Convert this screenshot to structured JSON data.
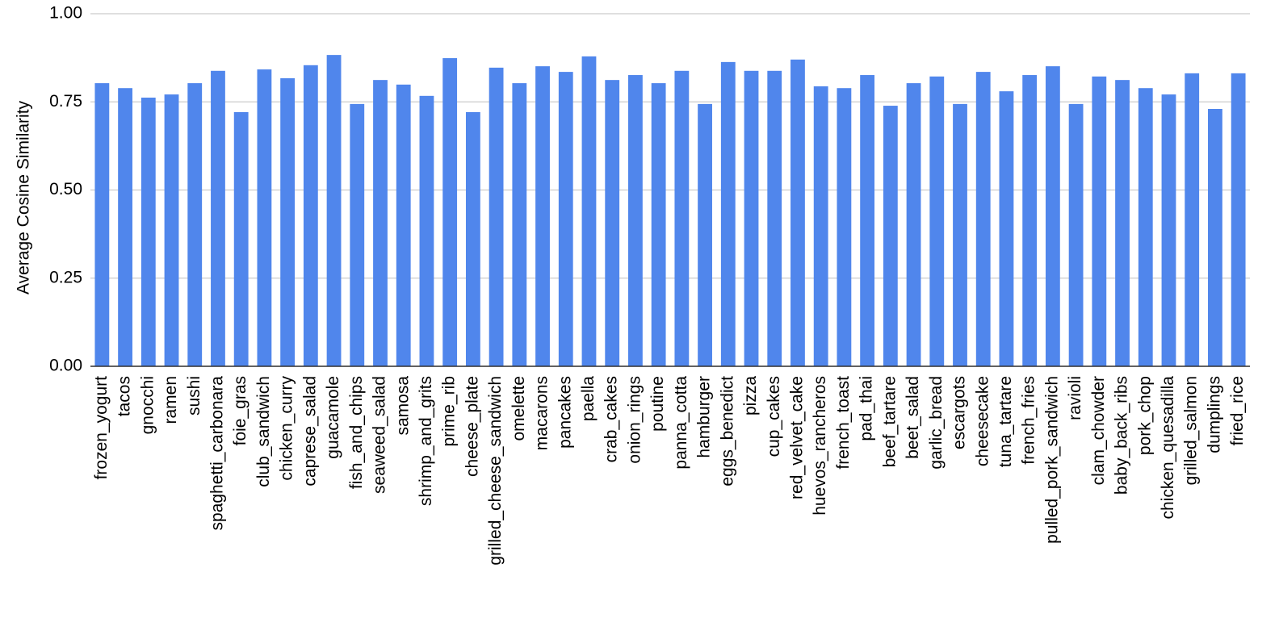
{
  "chart_data": {
    "type": "bar",
    "y_label": "Average Cosine Similarity",
    "categories": [
      "frozen_yogurt",
      "tacos",
      "gnocchi",
      "ramen",
      "sushi",
      "spaghetti_carbonara",
      "foie_gras",
      "club_sandwich",
      "chicken_curry",
      "caprese_salad",
      "guacamole",
      "fish_and_chips",
      "seaweed_salad",
      "samosa",
      "shrimp_and_grits",
      "prime_rib",
      "cheese_plate",
      "grilled_cheese_sandwich",
      "omelette",
      "macarons",
      "pancakes",
      "paella",
      "crab_cakes",
      "onion_rings",
      "poutine",
      "panna_cotta",
      "hamburger",
      "eggs_benedict",
      "pizza",
      "cup_cakes",
      "red_velvet_cake",
      "huevos_rancheros",
      "french_toast",
      "pad_thai",
      "beef_tartare",
      "beet_salad",
      "garlic_bread",
      "escargots",
      "cheesecake",
      "tuna_tartare",
      "french_fries",
      "pulled_pork_sandwich",
      "ravioli",
      "clam_chowder",
      "baby_back_ribs",
      "pork_chop",
      "chicken_quesadilla",
      "grilled_salmon",
      "dumplings",
      "fried_rice"
    ],
    "values": [
      0.803,
      0.789,
      0.762,
      0.771,
      0.803,
      0.838,
      0.721,
      0.842,
      0.817,
      0.854,
      0.883,
      0.744,
      0.812,
      0.799,
      0.767,
      0.874,
      0.721,
      0.847,
      0.803,
      0.851,
      0.835,
      0.879,
      0.812,
      0.826,
      0.803,
      0.838,
      0.744,
      0.863,
      0.838,
      0.838,
      0.87,
      0.794,
      0.789,
      0.826,
      0.739,
      0.803,
      0.822,
      0.744,
      0.835,
      0.78,
      0.826,
      0.851,
      0.744,
      0.822,
      0.812,
      0.789,
      0.771,
      0.831,
      0.73,
      0.831
    ],
    "color": "#5086ec",
    "ylim": [
      0,
      1
    ],
    "yticks": [
      {
        "value": 0,
        "label": "0.00"
      },
      {
        "value": 0.25,
        "label": "0.25"
      },
      {
        "value": 0.5,
        "label": "0.50"
      },
      {
        "value": 0.75,
        "label": "0.75"
      },
      {
        "value": 1,
        "label": "1.00"
      }
    ],
    "grid": true
  }
}
